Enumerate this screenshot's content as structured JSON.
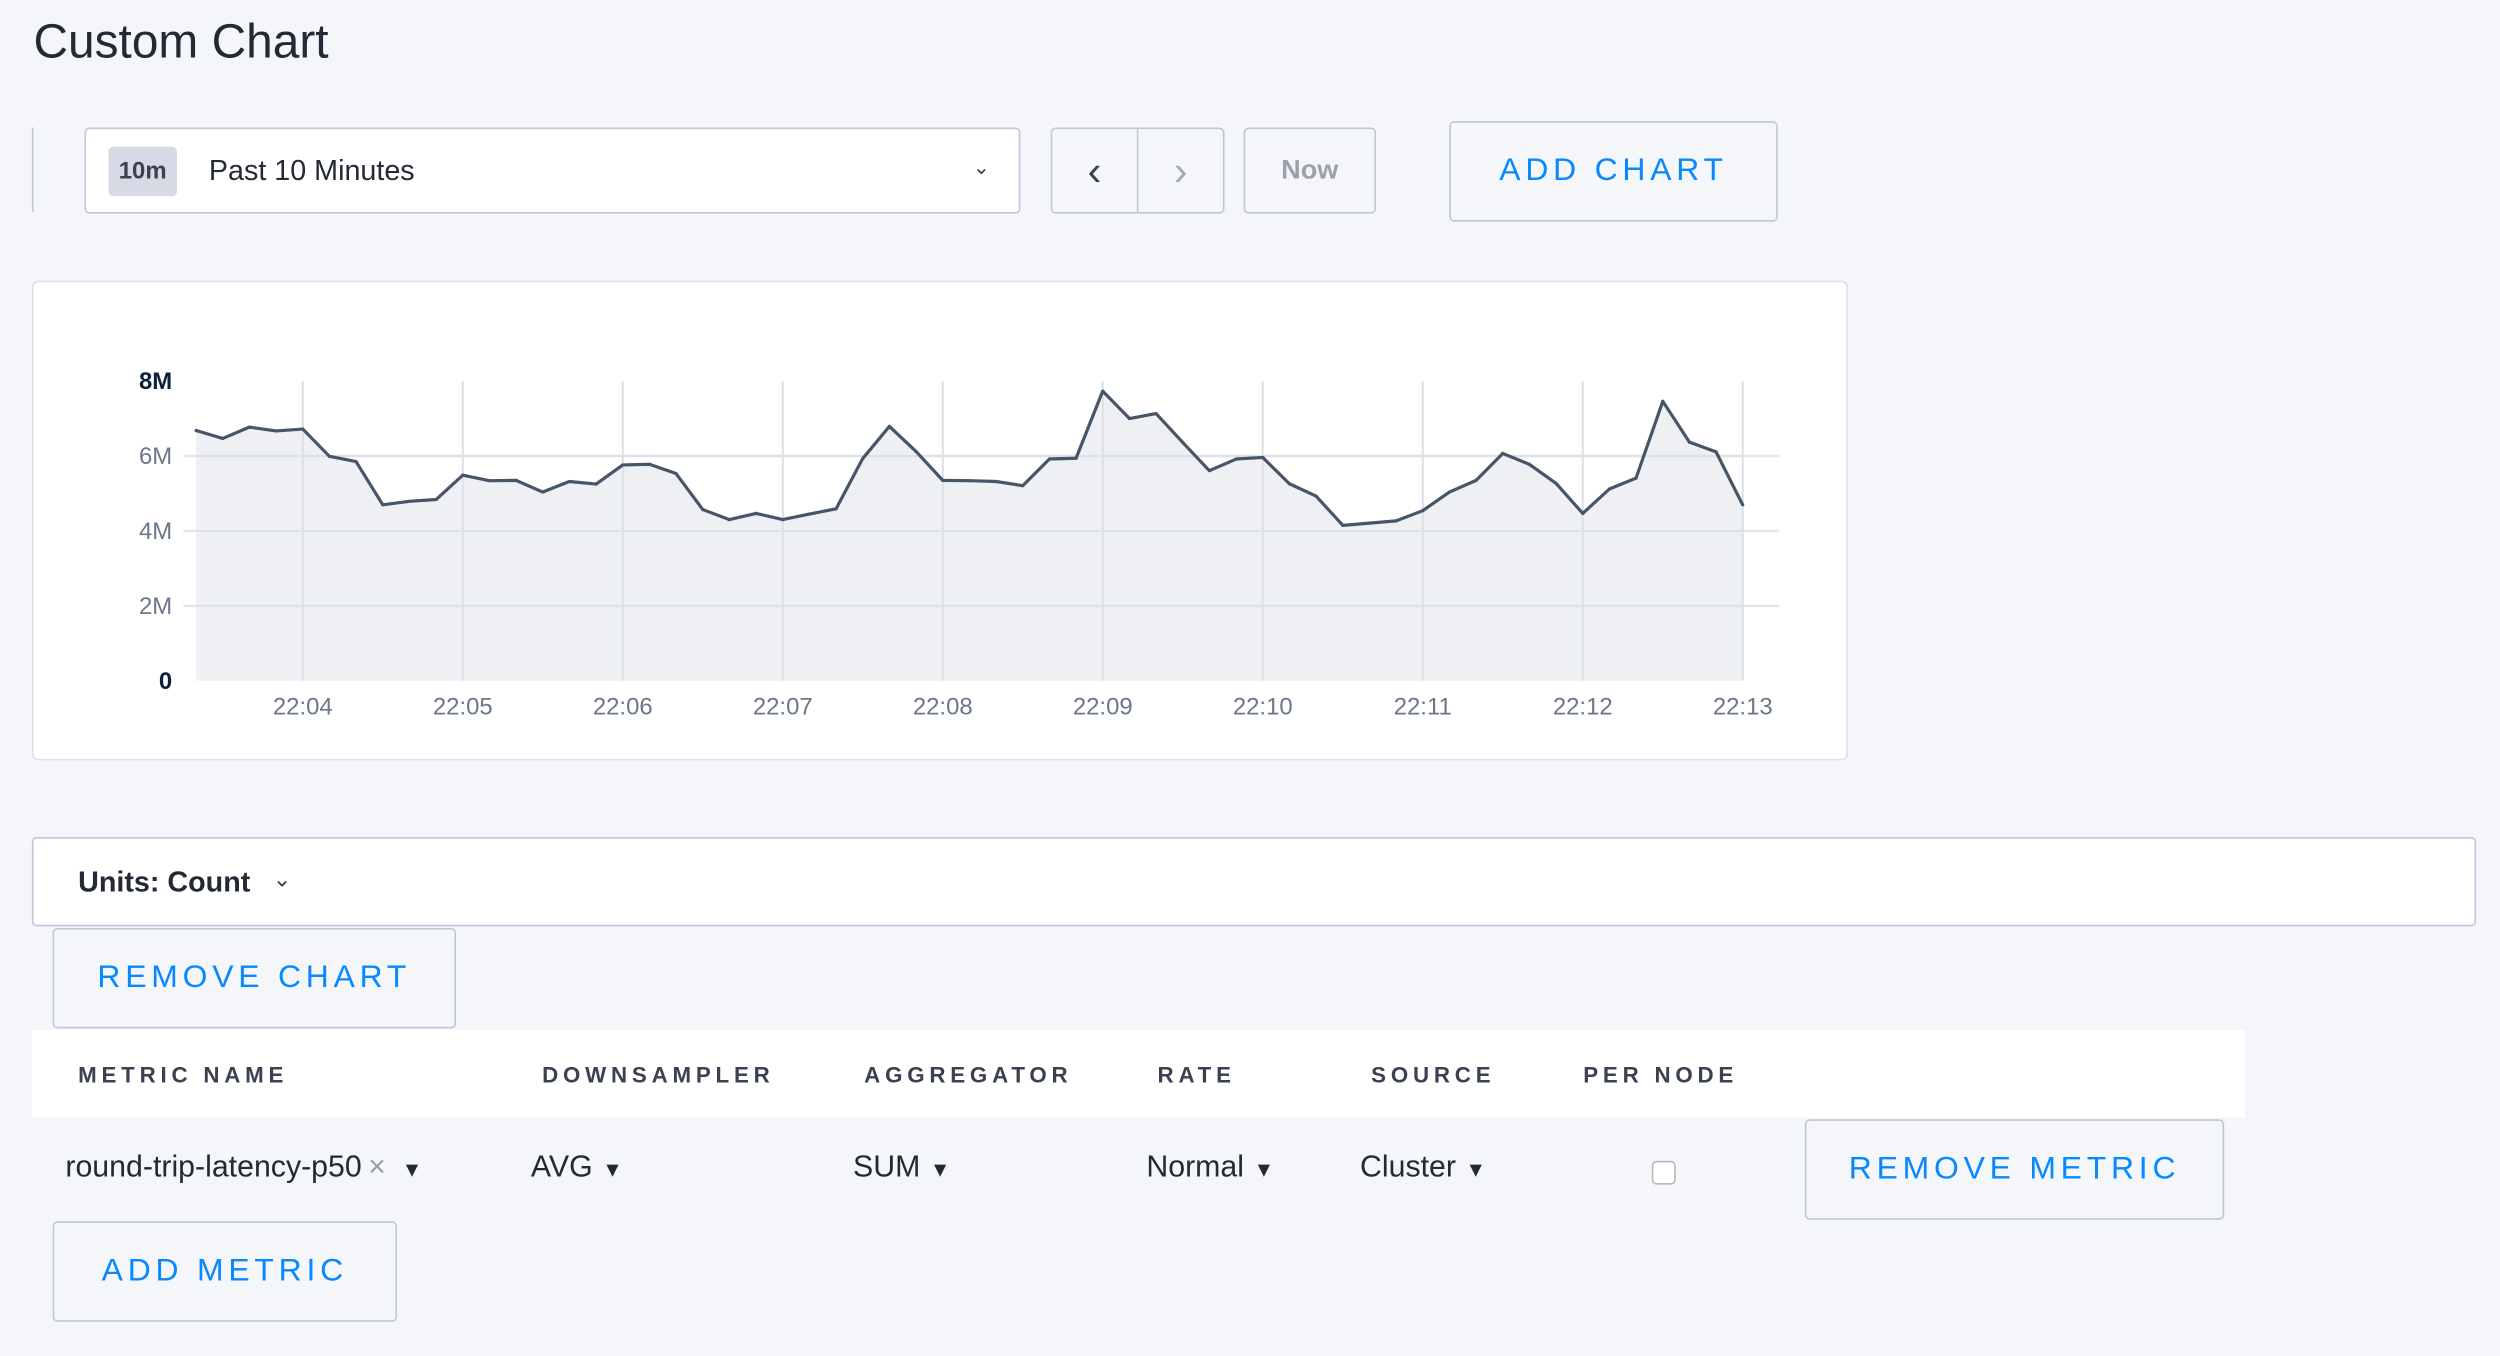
{
  "page": {
    "title": "Custom Chart"
  },
  "toolbar": {
    "range_badge": "10m",
    "range_label": "Past 10 Minutes",
    "prev_icon": "chevron-left-icon",
    "next_icon": "chevron-right-icon",
    "now_label": "Now",
    "add_chart_label": "ADD CHART"
  },
  "chart_data": {
    "type": "area",
    "title": "",
    "xlabel": "",
    "ylabel": "",
    "ylim": [
      0,
      8000000
    ],
    "y_ticks": [
      "0",
      "2M",
      "4M",
      "6M",
      "8M"
    ],
    "x_ticks": [
      "22:04",
      "22:05",
      "22:06",
      "22:07",
      "22:08",
      "22:09",
      "22:10",
      "22:11",
      "22:12",
      "22:13"
    ],
    "x_start": "22:03:20",
    "x_step_seconds": 10,
    "x_end": "22:13:00",
    "grid": true,
    "line_color": "#475569",
    "fill_color": "#ebedf1",
    "values_millions": [
      6.68,
      6.47,
      6.77,
      6.67,
      6.72,
      5.99,
      5.85,
      4.7,
      4.79,
      4.84,
      5.49,
      5.34,
      5.35,
      5.04,
      5.32,
      5.25,
      5.76,
      5.78,
      5.53,
      4.57,
      4.3,
      4.47,
      4.3,
      4.45,
      4.59,
      5.93,
      6.79,
      6.12,
      5.35,
      5.34,
      5.32,
      5.21,
      5.92,
      5.94,
      7.73,
      7.0,
      7.13,
      6.36,
      5.61,
      5.92,
      5.96,
      5.26,
      4.93,
      4.15,
      4.21,
      4.27,
      4.54,
      5.04,
      5.35,
      6.07,
      5.78,
      5.27,
      4.47,
      5.12,
      5.41,
      7.46,
      6.37,
      6.11,
      4.7
    ]
  },
  "units": {
    "label": "Units: Count"
  },
  "remove_chart_label": "REMOVE CHART",
  "table": {
    "headers": [
      "METRIC NAME",
      "DOWNSAMPLER",
      "AGGREGATOR",
      "RATE",
      "SOURCE",
      "PER NODE"
    ],
    "row": {
      "metric": "round-trip-latency-p50",
      "clear": "×",
      "downsampler": "AVG",
      "aggregator": "SUM",
      "rate": "Normal",
      "source": "Cluster",
      "per_node": false
    },
    "remove_metric_label": "REMOVE METRIC",
    "add_metric_label": "ADD METRIC"
  }
}
